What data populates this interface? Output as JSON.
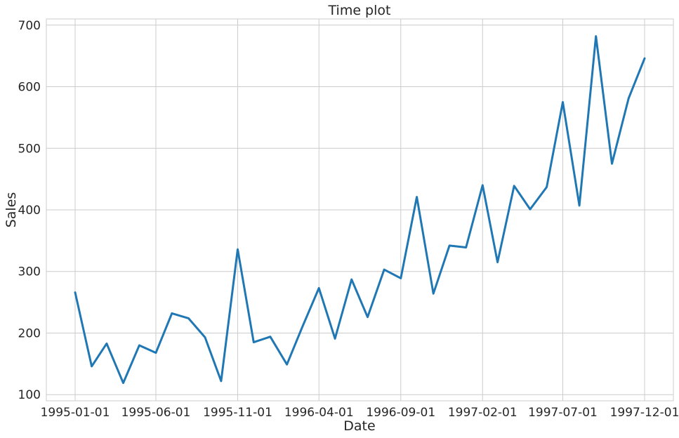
{
  "chart_data": {
    "type": "line",
    "title": "Time plot",
    "xlabel": "Date",
    "ylabel": "Sales",
    "ylim": [
      90,
      710
    ],
    "yticks": [
      100,
      200,
      300,
      400,
      500,
      600,
      700
    ],
    "xticks": [
      "1995-01-01",
      "1995-06-01",
      "1995-11-01",
      "1996-04-01",
      "1996-09-01",
      "1997-02-01",
      "1997-07-01",
      "1997-12-01"
    ],
    "grid": true,
    "legend": "none",
    "line_color": "#1f77b4",
    "x": [
      "1995-01-01",
      "1995-02-01",
      "1995-03-01",
      "1995-04-01",
      "1995-05-01",
      "1995-06-01",
      "1995-07-01",
      "1995-08-01",
      "1995-09-01",
      "1995-10-01",
      "1995-11-01",
      "1995-12-01",
      "1996-01-01",
      "1996-02-01",
      "1996-03-01",
      "1996-04-01",
      "1996-05-01",
      "1996-06-01",
      "1996-07-01",
      "1996-08-01",
      "1996-09-01",
      "1996-10-01",
      "1996-11-01",
      "1996-12-01",
      "1997-01-01",
      "1997-02-01",
      "1997-03-01",
      "1997-04-01",
      "1997-05-01",
      "1997-06-01",
      "1997-07-01",
      "1997-08-01",
      "1997-09-01",
      "1997-10-01",
      "1997-11-01",
      "1997-12-01"
    ],
    "series": [
      {
        "values": [
          266,
          146,
          183,
          119,
          180,
          168,
          232,
          224,
          193,
          122,
          336,
          185,
          194,
          149,
          210,
          273,
          191,
          287,
          226,
          303,
          289,
          421,
          264,
          342,
          339,
          440,
          315,
          439,
          401,
          437,
          575,
          407,
          682,
          475,
          581,
          646
        ]
      }
    ]
  }
}
